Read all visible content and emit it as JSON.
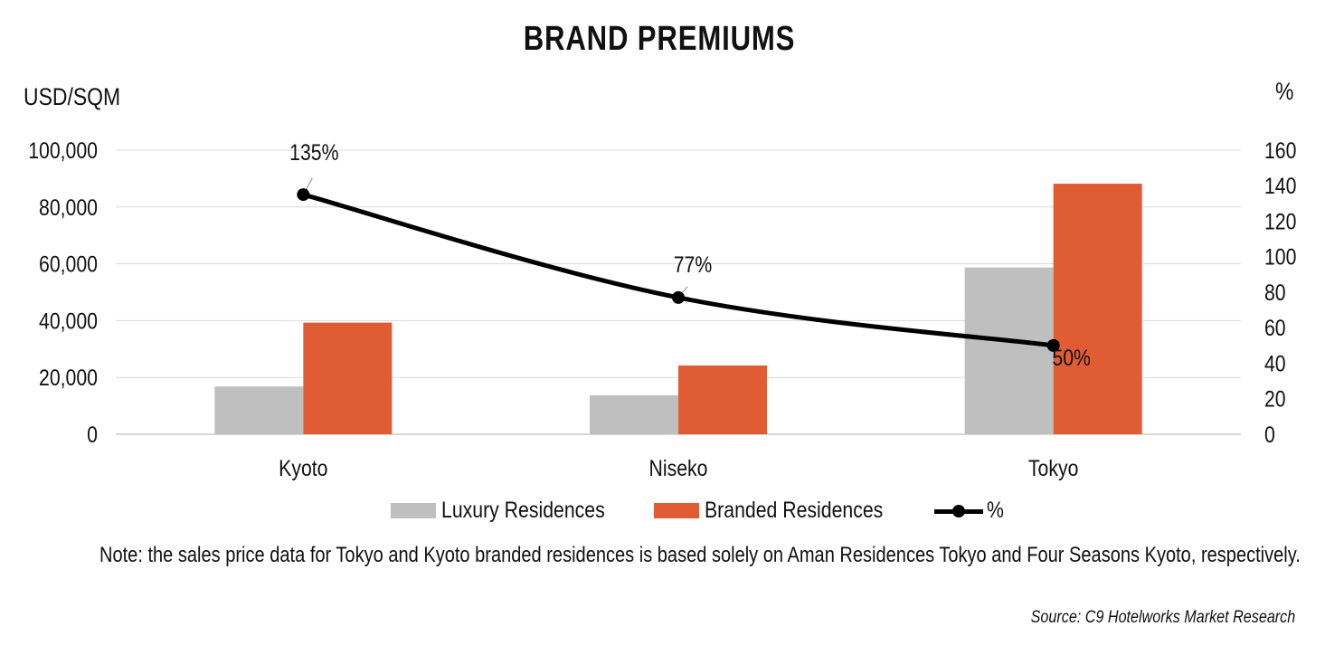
{
  "chart_data": {
    "type": "bar",
    "title": "BRAND PREMIUMS",
    "ylabel_left": "USD/SQM",
    "ylabel_right": "%",
    "categories": [
      "Kyoto",
      "Niseko",
      "Tokyo"
    ],
    "ylim_left": [
      0,
      100000
    ],
    "ylim_right": [
      0,
      160
    ],
    "yticks_left": [
      "100,000",
      "80,000",
      "60,000",
      "40,000",
      "20,000",
      "0"
    ],
    "yticks_right": [
      "160",
      "140",
      "120",
      "100",
      "80",
      "60",
      "40",
      "20",
      "0"
    ],
    "series": [
      {
        "name": "Luxury Residences",
        "type": "bar",
        "axis": "left",
        "color": "#bfbfbf",
        "values": [
          16800,
          13700,
          58700
        ]
      },
      {
        "name": "Branded Residences",
        "type": "bar",
        "axis": "left",
        "color": "#e05c33",
        "values": [
          39300,
          24200,
          88200
        ]
      },
      {
        "name": "%",
        "type": "line",
        "axis": "right",
        "color": "#000000",
        "values": [
          135,
          77,
          50
        ],
        "data_labels": [
          "135%",
          "77%",
          "50%"
        ]
      }
    ],
    "grid": "horizontal",
    "legend": "bottom"
  },
  "note": "Note:  the sales price data for Tokyo and Kyoto branded residences is based solely on Aman Residences Tokyo and Four Seasons Kyoto, respectively.",
  "source": "Source: C9 Hotelworks Market Research"
}
